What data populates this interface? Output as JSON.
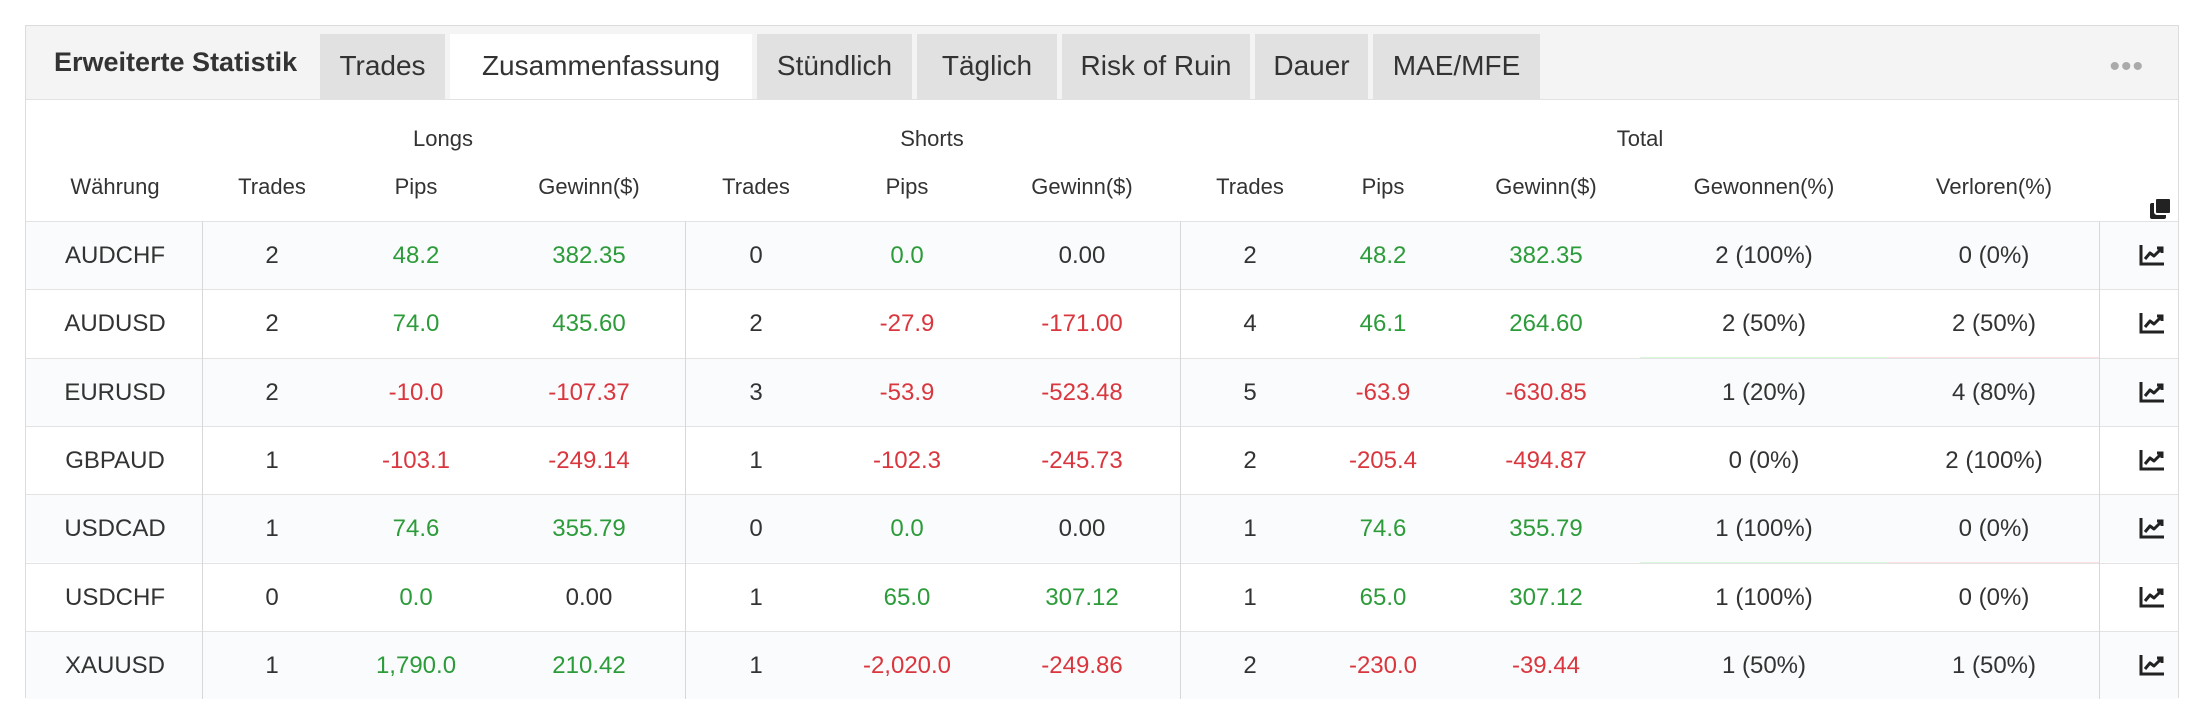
{
  "header": {
    "title": "Erweiterte Statistik",
    "tabs": [
      {
        "label": "Trades",
        "active": false
      },
      {
        "label": "Zusammenfassung",
        "active": true
      },
      {
        "label": "Stündlich",
        "active": false
      },
      {
        "label": "Täglich",
        "active": false
      },
      {
        "label": "Risk of Ruin",
        "active": false
      },
      {
        "label": "Dauer",
        "active": false
      },
      {
        "label": "MAE/MFE",
        "active": false
      }
    ],
    "more_icon": "ellipsis-icon"
  },
  "table": {
    "groups": {
      "longs": "Longs",
      "shorts": "Shorts",
      "total": "Total"
    },
    "columns": {
      "currency": "Währung",
      "trades": "Trades",
      "pips": "Pips",
      "profit": "Gewinn($)",
      "won": "Gewonnen(%)",
      "lost": "Verloren(%)"
    },
    "copy_icon": "copy-icon",
    "row_icon": "chart-line-icon",
    "colors": {
      "positive": "#2c9b3a",
      "negative": "#d9363e",
      "won_bg": "#dcf8dc",
      "lost_bg": "#fce0e2"
    },
    "rows": [
      {
        "currency": "AUDCHF",
        "long_trades": "2",
        "long_pips": "48.2",
        "long_profit": "382.35",
        "short_trades": "0",
        "short_pips": "0.0",
        "short_profit": "0.00",
        "total_trades": "2",
        "total_pips": "48.2",
        "total_profit": "382.35",
        "won": "2 (100%)",
        "lost": "0 (0%)"
      },
      {
        "currency": "AUDUSD",
        "long_trades": "2",
        "long_pips": "74.0",
        "long_profit": "435.60",
        "short_trades": "2",
        "short_pips": "-27.9",
        "short_profit": "-171.00",
        "total_trades": "4",
        "total_pips": "46.1",
        "total_profit": "264.60",
        "won": "2 (50%)",
        "lost": "2 (50%)"
      },
      {
        "currency": "EURUSD",
        "long_trades": "2",
        "long_pips": "-10.0",
        "long_profit": "-107.37",
        "short_trades": "3",
        "short_pips": "-53.9",
        "short_profit": "-523.48",
        "total_trades": "5",
        "total_pips": "-63.9",
        "total_profit": "-630.85",
        "won": "1 (20%)",
        "lost": "4 (80%)"
      },
      {
        "currency": "GBPAUD",
        "long_trades": "1",
        "long_pips": "-103.1",
        "long_profit": "-249.14",
        "short_trades": "1",
        "short_pips": "-102.3",
        "short_profit": "-245.73",
        "total_trades": "2",
        "total_pips": "-205.4",
        "total_profit": "-494.87",
        "won": "0 (0%)",
        "lost": "2 (100%)"
      },
      {
        "currency": "USDCAD",
        "long_trades": "1",
        "long_pips": "74.6",
        "long_profit": "355.79",
        "short_trades": "0",
        "short_pips": "0.0",
        "short_profit": "0.00",
        "total_trades": "1",
        "total_pips": "74.6",
        "total_profit": "355.79",
        "won": "1 (100%)",
        "lost": "0 (0%)"
      },
      {
        "currency": "USDCHF",
        "long_trades": "0",
        "long_pips": "0.0",
        "long_profit": "0.00",
        "short_trades": "1",
        "short_pips": "65.0",
        "short_profit": "307.12",
        "total_trades": "1",
        "total_pips": "65.0",
        "total_profit": "307.12",
        "won": "1 (100%)",
        "lost": "0 (0%)"
      },
      {
        "currency": "XAUUSD",
        "long_trades": "1",
        "long_pips": "1,790.0",
        "long_profit": "210.42",
        "short_trades": "1",
        "short_pips": "-2,020.0",
        "short_profit": "-249.86",
        "total_trades": "2",
        "total_pips": "-230.0",
        "total_profit": "-39.44",
        "won": "1 (50%)",
        "lost": "1 (50%)"
      }
    ]
  }
}
